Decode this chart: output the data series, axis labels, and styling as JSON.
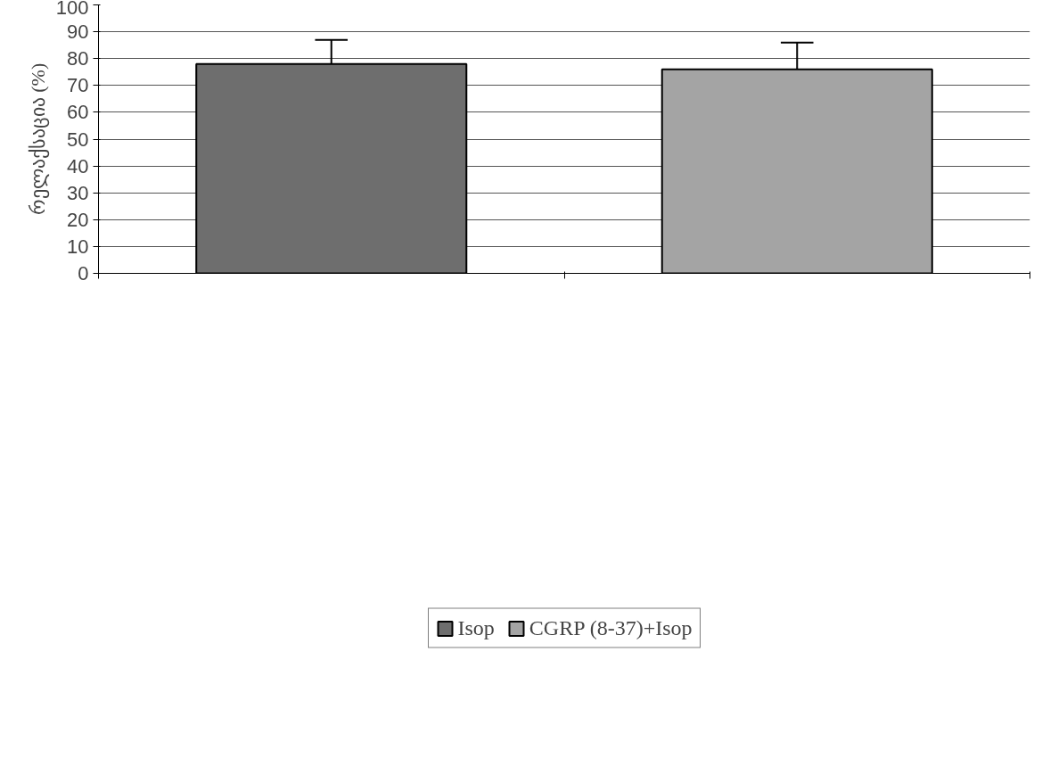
{
  "chart_data": {
    "type": "bar",
    "ylabel": "რელაქსაცია (%)",
    "categories": [
      null,
      null
    ],
    "series": [
      {
        "name": "Isop",
        "color": "#6e6e6e",
        "values": [
          78,
          null
        ],
        "errors": [
          [
            78,
            87
          ],
          null
        ]
      },
      {
        "name": "CGRP (8-37)+Isop",
        "color": "#a4a4a4",
        "values": [
          null,
          76
        ],
        "errors": [
          null,
          [
            76,
            86
          ]
        ]
      }
    ],
    "ylim": [
      0,
      100
    ],
    "yticks": [
      0,
      10,
      20,
      30,
      40,
      50,
      60,
      70,
      80,
      90,
      100
    ],
    "grid": "y",
    "legend": "bottom"
  }
}
